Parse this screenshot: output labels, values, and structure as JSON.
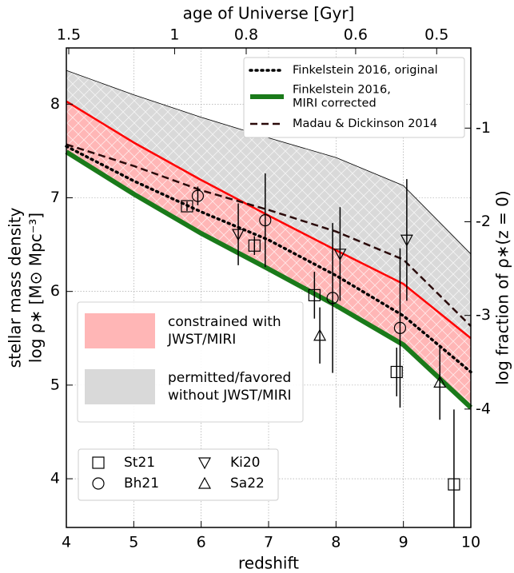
{
  "chart_data": {
    "type": "line",
    "x_label": "redshift",
    "x2_label": "age of Universe [Gyr]",
    "y_label": [
      "stellar mass density",
      "log ρ∗ [M⊙ Mpc⁻³]"
    ],
    "y2_label": "log fraction of ρ∗(z = 0)",
    "xlim": [
      4,
      10
    ],
    "xticks": [
      4,
      5,
      6,
      7,
      8,
      9,
      10
    ],
    "x2ticks": [
      1.5,
      1,
      0.8,
      0.6,
      0.5
    ],
    "ylim": [
      3.48,
      8.6
    ],
    "yticks": [
      4,
      5,
      6,
      7,
      8
    ],
    "y2lim": [
      -5.264,
      -0.144
    ],
    "y2ticks": [
      -1,
      -2,
      -3,
      -4
    ],
    "grid": true,
    "x": [
      4,
      5,
      6,
      7,
      8,
      9,
      10
    ],
    "bands": [
      {
        "name": [
          "permitted/favored",
          "without JWST/MIRI"
        ],
        "color": "#d9d9d9",
        "values": [
          8.36,
          8.1,
          7.86,
          7.64,
          7.43,
          7.13,
          6.4
        ]
      },
      {
        "name": [
          "constrained with",
          "JWST/MIRI"
        ],
        "color": "#ffb6b6",
        "line_color": "#ff0000",
        "values": [
          8.03,
          7.59,
          7.19,
          6.81,
          6.44,
          6.08,
          5.5
        ]
      }
    ],
    "series": [
      {
        "name": [
          "Finkelstein 2016, original"
        ],
        "color": "#000000",
        "style": "dotted",
        "values": [
          7.55,
          7.18,
          6.85,
          6.55,
          6.17,
          5.74,
          5.14
        ]
      },
      {
        "name": [
          "Finkelstein 2016,",
          "MIRI corrected"
        ],
        "color": "#1a7a1a",
        "style": "solid",
        "values": [
          7.49,
          7.04,
          6.62,
          6.24,
          5.85,
          5.43,
          4.76
        ]
      },
      {
        "name": [
          "Madau & Dickinson 2014"
        ],
        "color": "#2a0a0a",
        "style": "dashed",
        "values": [
          7.57,
          7.34,
          7.08,
          6.87,
          6.64,
          6.34,
          5.63
        ]
      }
    ],
    "points": [
      {
        "name": "St21",
        "marker": "square",
        "x": [
          5.79,
          6.79,
          7.68,
          8.9,
          9.75
        ],
        "values": [
          6.91,
          6.49,
          5.96,
          5.14,
          3.94
        ],
        "errors": [
          0.05,
          0.1,
          0.25,
          0.26,
          0.8
        ]
      },
      {
        "name": "Bh21",
        "marker": "circle",
        "x": [
          5.95,
          6.95,
          7.95,
          8.95
        ],
        "values": [
          7.02,
          6.76,
          5.93,
          5.61
        ],
        "errors": [
          0.1,
          0.5,
          0.8,
          0.85
        ]
      },
      {
        "name": "Ki20",
        "marker": "triangle-down",
        "x": [
          6.55,
          8.06,
          9.05
        ],
        "values": [
          6.61,
          6.4,
          6.55
        ],
        "errors": [
          0.33,
          0.5,
          0.65
        ]
      },
      {
        "name": "Sa22",
        "marker": "triangle-up",
        "x": [
          7.76,
          9.54
        ],
        "values": [
          5.53,
          5.03
        ],
        "errors": [
          0.3,
          0.4
        ]
      }
    ]
  }
}
